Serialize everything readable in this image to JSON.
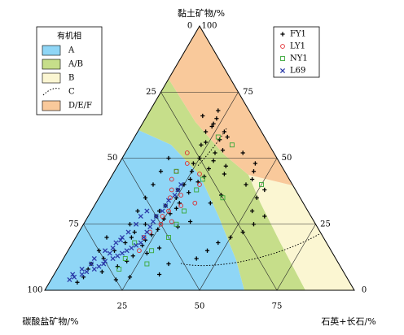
{
  "chart_data": {
    "type": "ternary",
    "top_axis_title": "黏土矿物/%",
    "left_axis_title": "碳酸盐矿物/%",
    "right_axis_title": "石英+长石/%",
    "value_order": [
      "黏土矿物",
      "碳酸盐矿物",
      "石英+长石"
    ],
    "clay_ticks": [
      0,
      25,
      50,
      75,
      100
    ],
    "carbonate_ticks": [
      0,
      25,
      50,
      75,
      100
    ],
    "quartz_feldspar_ticks": [
      25,
      50,
      75
    ],
    "grid": true,
    "region_legend_title": "有机相",
    "regions": [
      {
        "name": "A",
        "color": "#8fd6f6"
      },
      {
        "name": "A/B",
        "color": "#c6de8a"
      },
      {
        "name": "B",
        "color": "#fbf6d2"
      },
      {
        "name": "C",
        "style": "dotted"
      },
      {
        "name": "D/E/F",
        "color": "#f9c99b"
      }
    ],
    "series": [
      {
        "name": "FY1",
        "color": "#000000",
        "marker": "plus",
        "values": [
          [
            10,
            80,
            10
          ],
          [
            12,
            75,
            13
          ],
          [
            15,
            70,
            15
          ],
          [
            8,
            82,
            10
          ],
          [
            18,
            65,
            17
          ],
          [
            20,
            62,
            18
          ],
          [
            22,
            60,
            18
          ],
          [
            25,
            55,
            20
          ],
          [
            28,
            50,
            22
          ],
          [
            30,
            48,
            22
          ],
          [
            32,
            45,
            23
          ],
          [
            35,
            40,
            25
          ],
          [
            38,
            38,
            24
          ],
          [
            40,
            35,
            25
          ],
          [
            42,
            32,
            26
          ],
          [
            45,
            30,
            25
          ],
          [
            48,
            28,
            24
          ],
          [
            50,
            25,
            25
          ],
          [
            55,
            22,
            23
          ],
          [
            60,
            18,
            22
          ],
          [
            62,
            15,
            23
          ],
          [
            58,
            12,
            30
          ],
          [
            52,
            10,
            38
          ],
          [
            48,
            8,
            44
          ],
          [
            45,
            10,
            45
          ],
          [
            42,
            12,
            46
          ],
          [
            40,
            15,
            45
          ],
          [
            38,
            10,
            52
          ],
          [
            35,
            14,
            51
          ],
          [
            30,
            18,
            52
          ],
          [
            28,
            15,
            57
          ],
          [
            25,
            20,
            55
          ],
          [
            22,
            25,
            53
          ],
          [
            20,
            30,
            50
          ],
          [
            18,
            35,
            47
          ],
          [
            15,
            40,
            45
          ],
          [
            12,
            45,
            43
          ],
          [
            10,
            55,
            35
          ],
          [
            6,
            60,
            34
          ],
          [
            5,
            70,
            25
          ],
          [
            4,
            75,
            21
          ],
          [
            14,
            60,
            26
          ],
          [
            16,
            55,
            29
          ],
          [
            24,
            45,
            31
          ],
          [
            26,
            40,
            34
          ],
          [
            33,
            30,
            37
          ],
          [
            36,
            25,
            39
          ],
          [
            44,
            20,
            36
          ],
          [
            47,
            18,
            35
          ],
          [
            53,
            16,
            31
          ],
          [
            56,
            20,
            24
          ],
          [
            65,
            12,
            23
          ],
          [
            68,
            10,
            22
          ],
          [
            50,
            35,
            15
          ],
          [
            45,
            40,
            15
          ],
          [
            40,
            45,
            15
          ],
          [
            35,
            50,
            15
          ],
          [
            30,
            55,
            15
          ],
          [
            25,
            60,
            15
          ],
          [
            20,
            70,
            10
          ],
          [
            15,
            75,
            10
          ],
          [
            5,
            85,
            10
          ],
          [
            3,
            88,
            9
          ],
          [
            7,
            78,
            15
          ],
          [
            9,
            72,
            19
          ],
          [
            11,
            68,
            21
          ],
          [
            13,
            65,
            22
          ],
          [
            17,
            60,
            23
          ],
          [
            19,
            58,
            23
          ],
          [
            21,
            55,
            24
          ],
          [
            23,
            52,
            25
          ],
          [
            27,
            48,
            25
          ],
          [
            29,
            45,
            26
          ],
          [
            31,
            42,
            27
          ],
          [
            33,
            40,
            27
          ],
          [
            37,
            35,
            28
          ],
          [
            41,
            30,
            29
          ],
          [
            43,
            27,
            30
          ],
          [
            46,
            24,
            30
          ],
          [
            49,
            21,
            30
          ],
          [
            52,
            19,
            29
          ],
          [
            57,
            15,
            28
          ],
          [
            60,
            12,
            28
          ],
          [
            63,
            14,
            23
          ],
          [
            66,
            16,
            18
          ]
        ]
      },
      {
        "name": "LY1",
        "color": "#e0262b",
        "marker": "circle",
        "values": [
          [
            45,
            35,
            20
          ],
          [
            42,
            38,
            20
          ],
          [
            38,
            40,
            22
          ],
          [
            35,
            42,
            23
          ],
          [
            40,
            30,
            30
          ],
          [
            30,
            45,
            25
          ],
          [
            28,
            48,
            24
          ],
          [
            25,
            50,
            25
          ],
          [
            33,
            35,
            32
          ],
          [
            48,
            30,
            22
          ],
          [
            52,
            28,
            20
          ],
          [
            22,
            55,
            23
          ],
          [
            20,
            58,
            22
          ],
          [
            36,
            38,
            26
          ],
          [
            44,
            28,
            28
          ],
          [
            15,
            62,
            23
          ],
          [
            32,
            40,
            28
          ],
          [
            26,
            46,
            28
          ]
        ]
      },
      {
        "name": "NY1",
        "color": "#3aa83a",
        "marker": "square",
        "values": [
          [
            58,
            15,
            27
          ],
          [
            55,
            12,
            33
          ],
          [
            42,
            28,
            30
          ],
          [
            38,
            32,
            30
          ],
          [
            30,
            40,
            30
          ],
          [
            25,
            45,
            30
          ],
          [
            20,
            50,
            30
          ],
          [
            15,
            58,
            27
          ],
          [
            10,
            62,
            28
          ],
          [
            12,
            68,
            20
          ],
          [
            8,
            72,
            20
          ],
          [
            35,
            25,
            40
          ],
          [
            40,
            10,
            50
          ],
          [
            45,
            35,
            20
          ],
          [
            18,
            62,
            20
          ]
        ]
      },
      {
        "name": "L69",
        "color": "#2b3aa8",
        "marker": "x",
        "values": [
          [
            5,
            88,
            7
          ],
          [
            6,
            85,
            9
          ],
          [
            7,
            83,
            10
          ],
          [
            8,
            80,
            12
          ],
          [
            9,
            78,
            13
          ],
          [
            10,
            76,
            14
          ],
          [
            11,
            75,
            14
          ],
          [
            12,
            72,
            16
          ],
          [
            13,
            70,
            17
          ],
          [
            14,
            68,
            18
          ],
          [
            15,
            66,
            19
          ],
          [
            16,
            64,
            20
          ],
          [
            17,
            62,
            21
          ],
          [
            18,
            60,
            22
          ],
          [
            20,
            58,
            22
          ],
          [
            22,
            56,
            22
          ],
          [
            24,
            54,
            22
          ],
          [
            26,
            52,
            22
          ],
          [
            28,
            50,
            22
          ],
          [
            30,
            47,
            23
          ],
          [
            32,
            45,
            23
          ],
          [
            34,
            43,
            23
          ],
          [
            36,
            40,
            24
          ],
          [
            38,
            38,
            24
          ],
          [
            40,
            36,
            24
          ],
          [
            10,
            80,
            10
          ],
          [
            12,
            78,
            10
          ],
          [
            15,
            73,
            12
          ],
          [
            18,
            68,
            14
          ],
          [
            20,
            65,
            15
          ],
          [
            22,
            62,
            16
          ],
          [
            25,
            58,
            17
          ],
          [
            28,
            55,
            17
          ],
          [
            30,
            52,
            18
          ],
          [
            4,
            90,
            6
          ],
          [
            6,
            88,
            6
          ],
          [
            8,
            84,
            8
          ],
          [
            14,
            72,
            14
          ],
          [
            16,
            70,
            14
          ],
          [
            19,
            66,
            15
          ]
        ]
      }
    ]
  }
}
